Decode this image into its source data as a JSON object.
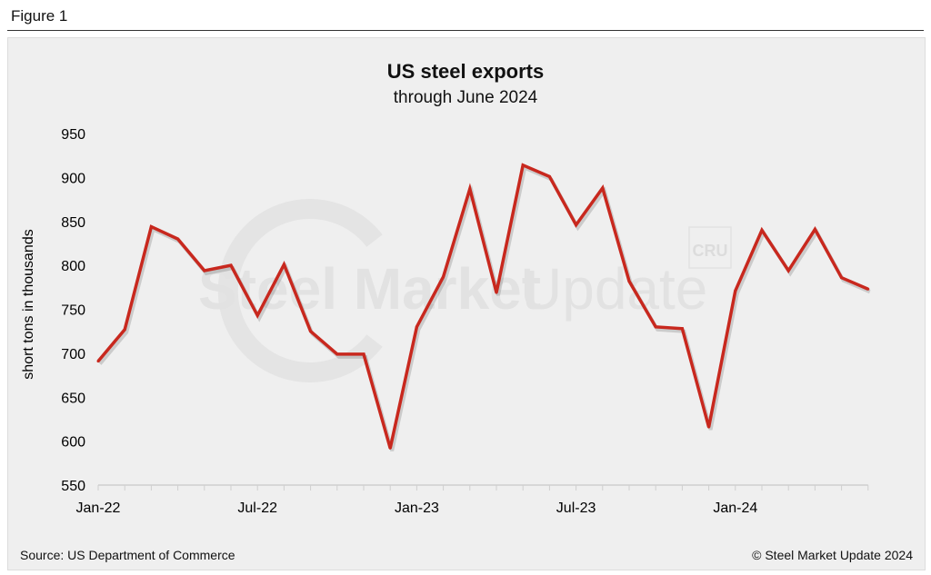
{
  "figure_label": "Figure 1",
  "source": "Source: US Department of Commerce",
  "copyright": "© Steel Market Update 2024",
  "watermark": {
    "text_bold": "Steel Market",
    "text_light": "Update",
    "badge": "CRU"
  },
  "colors": {
    "line": "#c8281e",
    "background": "#efefef"
  },
  "chart_data": {
    "type": "line",
    "title": "US steel exports",
    "subtitle": "through June 2024",
    "ylabel": "short tons in thousands",
    "xlabel": "",
    "ylim": [
      550,
      950
    ],
    "yticks": [
      550,
      600,
      650,
      700,
      750,
      800,
      850,
      900,
      950
    ],
    "xtick_labels": [
      "Jan-22",
      "Jul-22",
      "Jan-23",
      "Jul-23",
      "Jan-24"
    ],
    "grid": false,
    "x": [
      "Jan-22",
      "Feb-22",
      "Mar-22",
      "Apr-22",
      "May-22",
      "Jun-22",
      "Jul-22",
      "Aug-22",
      "Sep-22",
      "Oct-22",
      "Nov-22",
      "Dec-22",
      "Jan-23",
      "Feb-23",
      "Mar-23",
      "Apr-23",
      "May-23",
      "Jun-23",
      "Jul-23",
      "Aug-23",
      "Sep-23",
      "Oct-23",
      "Nov-23",
      "Dec-23",
      "Jan-24",
      "Feb-24",
      "Mar-24",
      "Apr-24",
      "May-24",
      "Jun-24"
    ],
    "values": [
      691,
      727,
      844,
      830,
      794,
      800,
      743,
      801,
      725,
      699,
      699,
      592,
      730,
      787,
      887,
      769,
      914,
      901,
      846,
      888,
      782,
      730,
      728,
      616,
      771,
      840,
      794,
      841,
      786,
      773
    ]
  }
}
